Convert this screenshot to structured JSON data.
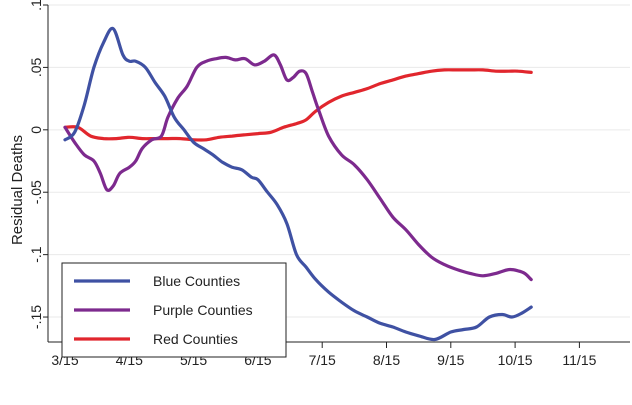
{
  "chart_data": {
    "type": "line",
    "title": "",
    "xlabel": "",
    "ylabel": "Residual Deaths",
    "ylim": [
      -0.17,
      0.1
    ],
    "x_ticks": [
      "3/15",
      "4/15",
      "5/15",
      "6/15",
      "7/15",
      "8/15",
      "9/15",
      "10/15",
      "11/15"
    ],
    "y_ticks": [
      {
        "value": 0.1,
        "label": ".1"
      },
      {
        "value": 0.05,
        "label": ".05"
      },
      {
        "value": 0,
        "label": "0"
      },
      {
        "value": -0.05,
        "label": "-.05"
      },
      {
        "value": -0.1,
        "label": "-.1"
      },
      {
        "value": -0.15,
        "label": "-.15"
      }
    ],
    "grid": "horizontal",
    "legend_position": "bottom-left",
    "series": [
      {
        "name": "Blue Counties",
        "color": "#3f51a3",
        "points": [
          [
            0,
            -0.008
          ],
          [
            0.15,
            -0.002
          ],
          [
            0.3,
            0.02
          ],
          [
            0.45,
            0.05
          ],
          [
            0.6,
            0.07
          ],
          [
            0.75,
            0.081
          ],
          [
            0.9,
            0.06
          ],
          [
            1.0,
            0.055
          ],
          [
            1.1,
            0.055
          ],
          [
            1.25,
            0.05
          ],
          [
            1.4,
            0.038
          ],
          [
            1.55,
            0.027
          ],
          [
            1.7,
            0.01
          ],
          [
            1.85,
            0.0
          ],
          [
            2.0,
            -0.01
          ],
          [
            2.15,
            -0.015
          ],
          [
            2.3,
            -0.02
          ],
          [
            2.45,
            -0.026
          ],
          [
            2.6,
            -0.03
          ],
          [
            2.75,
            -0.032
          ],
          [
            2.9,
            -0.038
          ],
          [
            3.0,
            -0.04
          ],
          [
            3.15,
            -0.05
          ],
          [
            3.3,
            -0.06
          ],
          [
            3.45,
            -0.075
          ],
          [
            3.6,
            -0.1
          ],
          [
            3.75,
            -0.11
          ],
          [
            3.9,
            -0.12
          ],
          [
            4.1,
            -0.13
          ],
          [
            4.3,
            -0.138
          ],
          [
            4.5,
            -0.145
          ],
          [
            4.7,
            -0.15
          ],
          [
            4.9,
            -0.155
          ],
          [
            5.1,
            -0.158
          ],
          [
            5.3,
            -0.162
          ],
          [
            5.5,
            -0.165
          ],
          [
            5.75,
            -0.168
          ],
          [
            6.0,
            -0.162
          ],
          [
            6.2,
            -0.16
          ],
          [
            6.4,
            -0.158
          ],
          [
            6.6,
            -0.15
          ],
          [
            6.8,
            -0.148
          ],
          [
            6.95,
            -0.15
          ],
          [
            7.1,
            -0.147
          ],
          [
            7.25,
            -0.142
          ]
        ]
      },
      {
        "name": "Purple Counties",
        "color": "#7d2a8e",
        "points": [
          [
            0,
            0.002
          ],
          [
            0.15,
            -0.01
          ],
          [
            0.3,
            -0.02
          ],
          [
            0.45,
            -0.025
          ],
          [
            0.55,
            -0.035
          ],
          [
            0.65,
            -0.048
          ],
          [
            0.75,
            -0.045
          ],
          [
            0.85,
            -0.035
          ],
          [
            1.0,
            -0.03
          ],
          [
            1.1,
            -0.025
          ],
          [
            1.2,
            -0.015
          ],
          [
            1.35,
            -0.008
          ],
          [
            1.5,
            -0.005
          ],
          [
            1.6,
            0.01
          ],
          [
            1.75,
            0.025
          ],
          [
            1.9,
            0.035
          ],
          [
            2.05,
            0.05
          ],
          [
            2.2,
            0.055
          ],
          [
            2.35,
            0.057
          ],
          [
            2.5,
            0.058
          ],
          [
            2.65,
            0.056
          ],
          [
            2.8,
            0.057
          ],
          [
            2.95,
            0.052
          ],
          [
            3.1,
            0.055
          ],
          [
            3.25,
            0.06
          ],
          [
            3.35,
            0.052
          ],
          [
            3.45,
            0.04
          ],
          [
            3.55,
            0.042
          ],
          [
            3.65,
            0.047
          ],
          [
            3.75,
            0.045
          ],
          [
            3.85,
            0.03
          ],
          [
            3.95,
            0.015
          ],
          [
            4.1,
            -0.005
          ],
          [
            4.3,
            -0.02
          ],
          [
            4.5,
            -0.028
          ],
          [
            4.7,
            -0.04
          ],
          [
            4.9,
            -0.055
          ],
          [
            5.1,
            -0.07
          ],
          [
            5.3,
            -0.08
          ],
          [
            5.5,
            -0.092
          ],
          [
            5.7,
            -0.102
          ],
          [
            5.9,
            -0.108
          ],
          [
            6.1,
            -0.112
          ],
          [
            6.3,
            -0.115
          ],
          [
            6.5,
            -0.117
          ],
          [
            6.7,
            -0.115
          ],
          [
            6.9,
            -0.112
          ],
          [
            7.05,
            -0.113
          ],
          [
            7.15,
            -0.115
          ],
          [
            7.25,
            -0.12
          ]
        ]
      },
      {
        "name": "Red Counties",
        "color": "#e1262d",
        "points": [
          [
            0,
            0.002
          ],
          [
            0.2,
            0.002
          ],
          [
            0.4,
            -0.005
          ],
          [
            0.6,
            -0.007
          ],
          [
            0.8,
            -0.007
          ],
          [
            1.0,
            -0.006
          ],
          [
            1.2,
            -0.007
          ],
          [
            1.4,
            -0.007
          ],
          [
            1.6,
            -0.007
          ],
          [
            1.8,
            -0.007
          ],
          [
            2.0,
            -0.008
          ],
          [
            2.2,
            -0.008
          ],
          [
            2.4,
            -0.006
          ],
          [
            2.6,
            -0.005
          ],
          [
            2.8,
            -0.004
          ],
          [
            3.0,
            -0.003
          ],
          [
            3.2,
            -0.002
          ],
          [
            3.4,
            0.002
          ],
          [
            3.6,
            0.005
          ],
          [
            3.75,
            0.008
          ],
          [
            3.9,
            0.015
          ],
          [
            4.1,
            0.022
          ],
          [
            4.3,
            0.027
          ],
          [
            4.5,
            0.03
          ],
          [
            4.7,
            0.033
          ],
          [
            4.9,
            0.037
          ],
          [
            5.1,
            0.04
          ],
          [
            5.3,
            0.043
          ],
          [
            5.5,
            0.045
          ],
          [
            5.7,
            0.047
          ],
          [
            5.9,
            0.048
          ],
          [
            6.1,
            0.048
          ],
          [
            6.3,
            0.048
          ],
          [
            6.5,
            0.048
          ],
          [
            6.7,
            0.047
          ],
          [
            6.9,
            0.047
          ],
          [
            7.05,
            0.047
          ],
          [
            7.25,
            0.046
          ]
        ]
      }
    ]
  }
}
